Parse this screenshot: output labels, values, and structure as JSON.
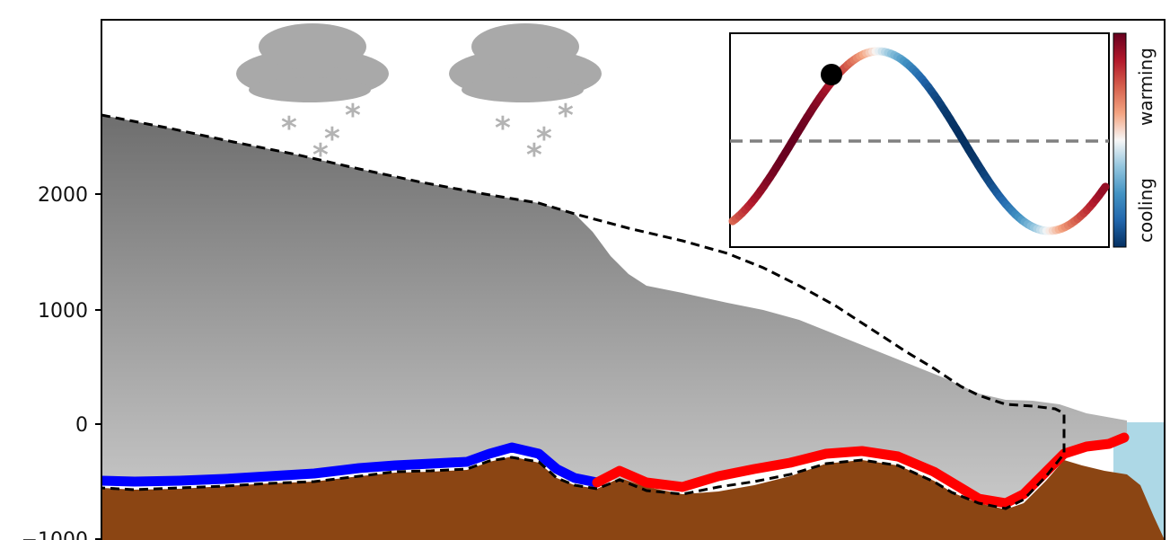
{
  "figure": {
    "y_axis": {
      "ticks": [
        {
          "value": 2000,
          "label": "2000"
        },
        {
          "value": 1000,
          "label": "1000"
        },
        {
          "value": 0,
          "label": "0"
        },
        {
          "value": -1000,
          "label": "−1000"
        }
      ]
    },
    "colors": {
      "ice_top": "#6e6e6e",
      "ice_bottom": "#c8c8c8",
      "bedrock": "#8b4513",
      "ocean": "#add8e6",
      "cooling_bed": "#0000ff",
      "warming_bed": "#ff0000",
      "former_outline": "#000000",
      "cloud": "#a9a9a9",
      "snow": "#b3b3b3"
    },
    "clouds": [
      {
        "name": "cloud-left",
        "snowflakes": [
          "*",
          "*",
          "*",
          "*"
        ]
      },
      {
        "name": "cloud-right",
        "snowflakes": [
          "*",
          "*",
          "*",
          "*"
        ]
      }
    ],
    "inset": {
      "colorbar_labels": {
        "top": "warming",
        "bottom": "cooling"
      },
      "colormap": [
        "#053061",
        "#2166ac",
        "#4393c3",
        "#92c5de",
        "#f7f7f7",
        "#f4a582",
        "#d6604d",
        "#b2182b",
        "#67001f"
      ]
    }
  }
}
